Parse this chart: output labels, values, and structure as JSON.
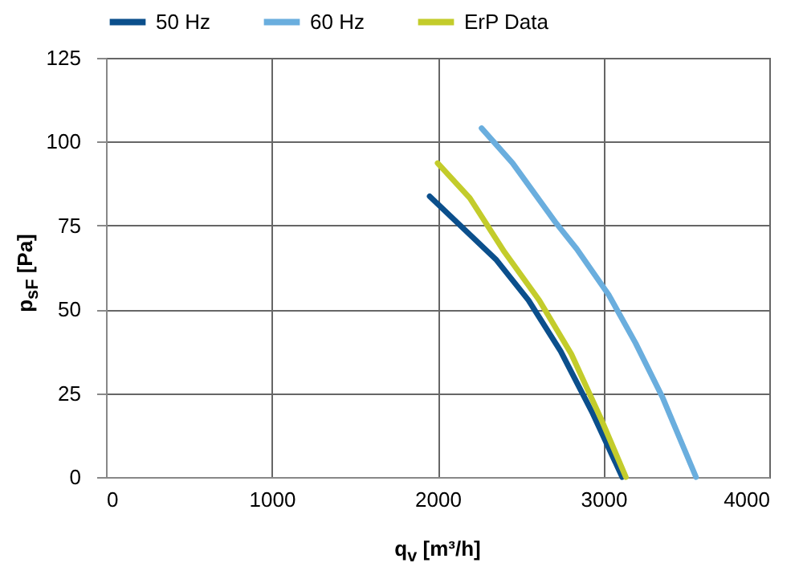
{
  "chart_data": {
    "type": "line",
    "xlabel": "q$_{v}$ [m³/h]",
    "ylabel": "p$_{sF}$ [Pa]",
    "xlim": [
      0,
      4000
    ],
    "xticks": [
      0,
      1000,
      2000,
      3000,
      4000
    ],
    "ylim": [
      0,
      125
    ],
    "yticks": [
      0,
      25,
      50,
      75,
      100,
      125
    ],
    "grid": true,
    "legend": "top",
    "marker": "none",
    "line_style": "solid",
    "series": [
      {
        "name": "50 Hz",
        "color": "#0b4f8c",
        "x": [
          1952,
          2355,
          2548,
          2742,
          2935,
          3113
        ],
        "values": [
          83.7,
          64.7,
          52.7,
          37.5,
          19,
          0
        ]
      },
      {
        "name": "60 Hz",
        "color": "#6aaede",
        "x": [
          2265,
          2452,
          2710,
          2839,
          3032,
          3194,
          3355,
          3558
        ],
        "values": [
          104,
          93.6,
          76,
          68,
          54.3,
          39.9,
          23.9,
          0
        ]
      },
      {
        "name": "ErP Data",
        "color": "#c3cc2b",
        "x": [
          2000,
          2194,
          2403,
          2613,
          2806,
          2984,
          3135
        ],
        "values": [
          93.6,
          83.2,
          67.1,
          52.7,
          36.7,
          17.5,
          0
        ]
      }
    ]
  }
}
